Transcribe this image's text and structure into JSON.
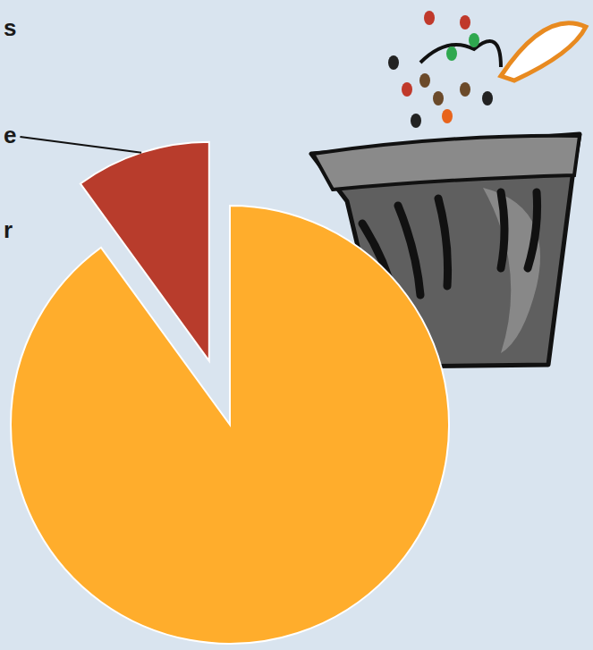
{
  "chart_data": {
    "type": "pie",
    "categories": [
      "e",
      null
    ],
    "values": [
      10,
      90
    ],
    "colors": [
      "#b83c2c",
      "#ffad2c"
    ],
    "annotations": [
      "s",
      "r"
    ]
  }
}
